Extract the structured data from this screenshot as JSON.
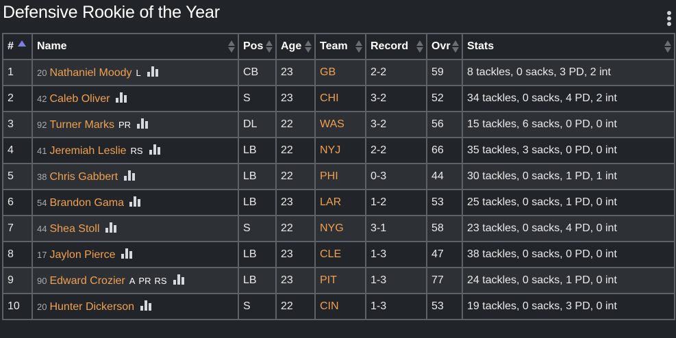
{
  "title": "Defensive Rookie of the Year",
  "colors": {
    "accent_link": "#f0a050",
    "sort_active": "#7c7fe0",
    "background": "#212428"
  },
  "columns": [
    {
      "label": "#",
      "sort": "asc"
    },
    {
      "label": "Name",
      "sort": "none"
    },
    {
      "label": "Pos",
      "sort": "none"
    },
    {
      "label": "Age",
      "sort": "none"
    },
    {
      "label": "Team",
      "sort": "none"
    },
    {
      "label": "Record",
      "sort": "none"
    },
    {
      "label": "Ovr",
      "sort": "none"
    },
    {
      "label": "Stats",
      "sort": "none"
    }
  ],
  "rows": [
    {
      "rank": "1",
      "jersey": "20",
      "name": "Nathaniel Moody",
      "tags": [
        "L"
      ],
      "pos": "CB",
      "age": "23",
      "team": "GB",
      "record": "2-2",
      "ovr": "59",
      "stats": "8 tackles, 0 sacks, 3 PD, 2 int"
    },
    {
      "rank": "2",
      "jersey": "42",
      "name": "Caleb Oliver",
      "tags": [],
      "pos": "S",
      "age": "23",
      "team": "CHI",
      "record": "3-2",
      "ovr": "52",
      "stats": "34 tackles, 0 sacks, 4 PD, 2 int"
    },
    {
      "rank": "3",
      "jersey": "92",
      "name": "Turner Marks",
      "tags": [
        "PR"
      ],
      "pos": "DL",
      "age": "22",
      "team": "WAS",
      "record": "3-2",
      "ovr": "56",
      "stats": "15 tackles, 6 sacks, 0 PD, 0 int"
    },
    {
      "rank": "4",
      "jersey": "41",
      "name": "Jeremiah Leslie",
      "tags": [
        "RS"
      ],
      "pos": "LB",
      "age": "22",
      "team": "NYJ",
      "record": "2-2",
      "ovr": "66",
      "stats": "35 tackles, 3 sacks, 0 PD, 0 int"
    },
    {
      "rank": "5",
      "jersey": "38",
      "name": "Chris Gabbert",
      "tags": [],
      "pos": "LB",
      "age": "22",
      "team": "PHI",
      "record": "0-3",
      "ovr": "44",
      "stats": "30 tackles, 0 sacks, 1 PD, 1 int"
    },
    {
      "rank": "6",
      "jersey": "54",
      "name": "Brandon Gama",
      "tags": [],
      "pos": "LB",
      "age": "23",
      "team": "LAR",
      "record": "1-2",
      "ovr": "53",
      "stats": "25 tackles, 0 sacks, 1 PD, 0 int"
    },
    {
      "rank": "7",
      "jersey": "44",
      "name": "Shea Stoll",
      "tags": [],
      "pos": "S",
      "age": "22",
      "team": "NYG",
      "record": "3-1",
      "ovr": "58",
      "stats": "23 tackles, 0 sacks, 4 PD, 0 int"
    },
    {
      "rank": "8",
      "jersey": "17",
      "name": "Jaylon Pierce",
      "tags": [],
      "pos": "LB",
      "age": "23",
      "team": "CLE",
      "record": "1-3",
      "ovr": "47",
      "stats": "38 tackles, 0 sacks, 0 PD, 0 int"
    },
    {
      "rank": "9",
      "jersey": "90",
      "name": "Edward Crozier",
      "tags": [
        "A",
        "PR",
        "RS"
      ],
      "pos": "LB",
      "age": "23",
      "team": "PIT",
      "record": "1-3",
      "ovr": "77",
      "stats": "24 tackles, 0 sacks, 1 PD, 0 int"
    },
    {
      "rank": "10",
      "jersey": "20",
      "name": "Hunter Dickerson",
      "tags": [],
      "pos": "S",
      "age": "22",
      "team": "CIN",
      "record": "1-3",
      "ovr": "53",
      "stats": "19 tackles, 0 sacks, 3 PD, 0 int"
    }
  ]
}
